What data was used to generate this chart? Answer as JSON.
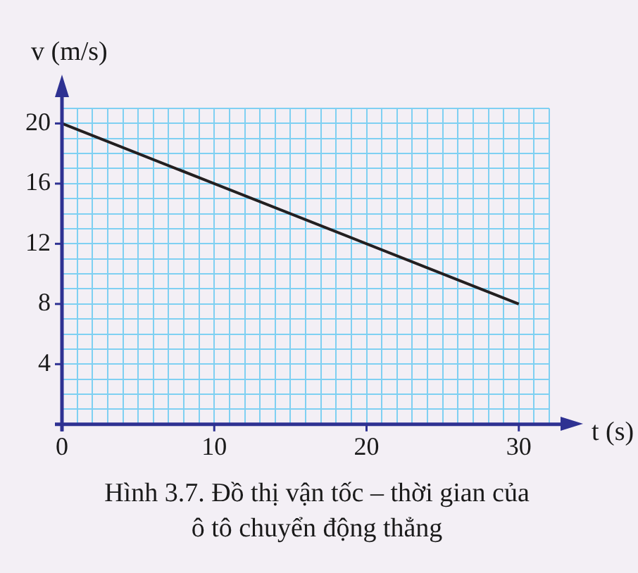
{
  "chart_data": {
    "type": "line",
    "title": "Hình 3.7. Đồ thị vận tốc – thời gian của ô tô chuyển động thẳng",
    "xlabel": "t (s)",
    "ylabel": "v (m/s)",
    "series": [
      {
        "color": "#231f20",
        "x": [
          0,
          30
        ],
        "values": [
          20,
          8
        ]
      }
    ],
    "xlim": [
      0,
      32
    ],
    "ylim": [
      0,
      21
    ],
    "xticks": [
      0,
      {
        "value": 1,
        "label": null
      },
      {
        "value": 2,
        "label": null
      },
      {
        "value": 3,
        "label": null
      },
      {
        "value": 4,
        "label": null
      },
      {
        "value": 5,
        "label": null
      },
      {
        "value": 6,
        "label": null
      },
      {
        "value": 7,
        "label": null
      },
      {
        "value": 8,
        "label": null
      },
      {
        "value": 9,
        "label": null
      },
      10,
      {
        "value": 11,
        "label": null
      },
      {
        "value": 12,
        "label": null
      },
      {
        "value": 13,
        "label": null
      },
      {
        "value": 14,
        "label": null
      },
      {
        "value": 15,
        "label": null
      },
      {
        "value": 16,
        "label": null
      },
      {
        "value": 17,
        "label": null
      },
      {
        "value": 18,
        "label": null
      },
      {
        "value": 19,
        "label": null
      },
      20,
      {
        "value": 21,
        "label": null
      },
      {
        "value": 22,
        "label": null
      },
      {
        "value": 23,
        "label": null
      },
      {
        "value": 24,
        "label": null
      },
      {
        "value": 25,
        "label": null
      },
      {
        "value": 26,
        "label": null
      },
      {
        "value": 27,
        "label": null
      },
      {
        "value": 28,
        "label": null
      },
      {
        "value": 29,
        "label": null
      },
      30,
      {
        "value": 31,
        "label": null
      },
      {
        "value": 32,
        "label": null
      }
    ],
    "yticks": [
      {
        "value": 0,
        "label": null
      },
      {
        "value": 1,
        "label": null
      },
      {
        "value": 2,
        "label": null
      },
      {
        "value": 3,
        "label": null
      },
      4,
      {
        "value": 5,
        "label": null
      },
      {
        "value": 6,
        "label": null
      },
      {
        "value": 7,
        "label": null
      },
      8,
      {
        "value": 9,
        "label": null
      },
      {
        "value": 10,
        "label": null
      },
      {
        "value": 11,
        "label": null
      },
      12,
      {
        "value": 13,
        "label": null
      },
      {
        "value": 14,
        "label": null
      },
      {
        "value": 15,
        "label": null
      },
      16,
      {
        "value": 17,
        "label": null
      },
      {
        "value": 18,
        "label": null
      },
      {
        "value": 19,
        "label": null
      },
      20,
      {
        "value": 21,
        "label": null
      }
    ],
    "grid": true,
    "marker": "none"
  }
}
